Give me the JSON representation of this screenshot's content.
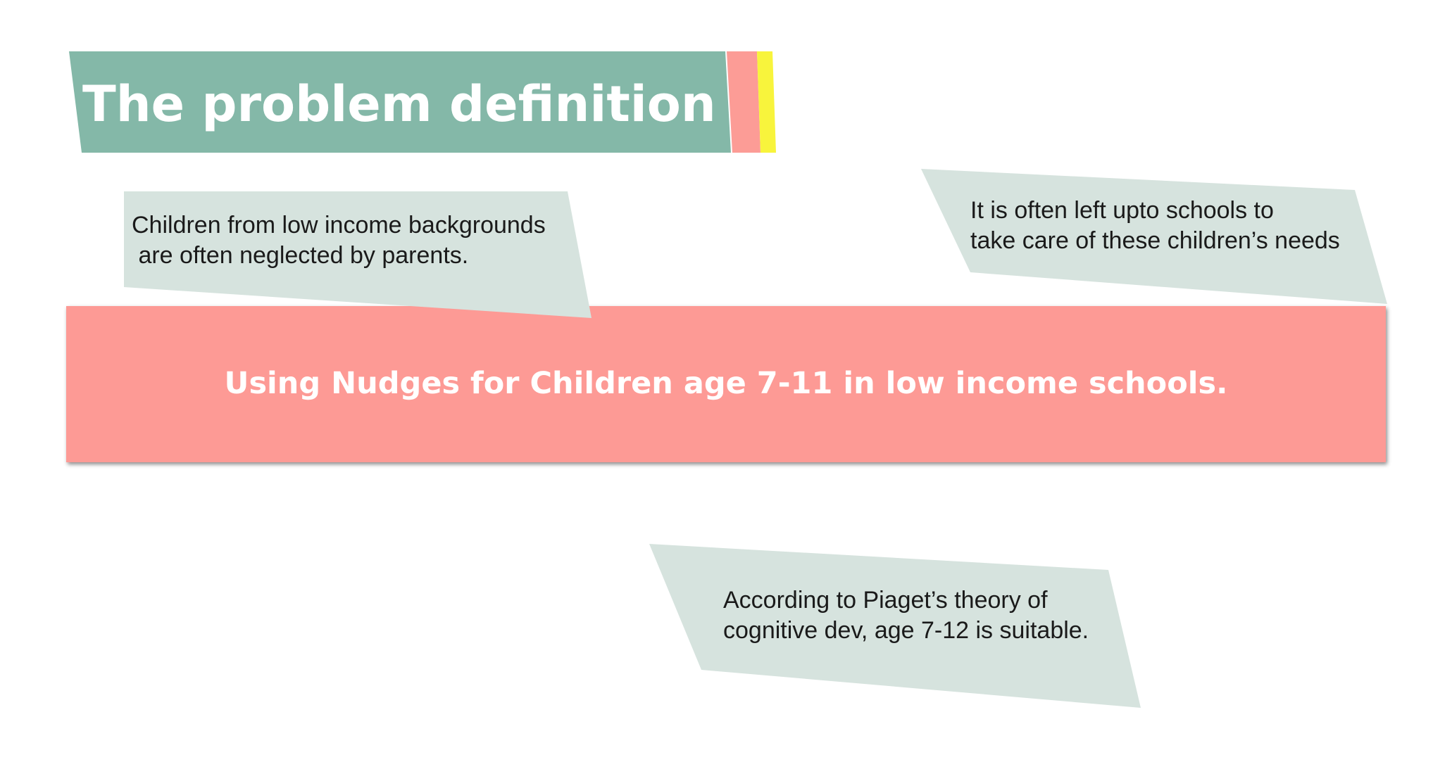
{
  "title": "The problem definition",
  "banner": "Using Nudges for Children age 7-11 in low income schools.",
  "notes": [
    {
      "lines": [
        "Children from low income backgrounds",
        " are often neglected by parents."
      ]
    },
    {
      "lines": [
        "It is often left upto schools to",
        "take care of these children’s needs"
      ]
    },
    {
      "lines": [
        "According to Piaget’s theory of",
        "cognitive dev, age 7-12 is suitable."
      ]
    }
  ],
  "colors": {
    "title_bg": "#84b8a8",
    "accent_pink": "#fc9c96",
    "accent_yellow": "#f8f43c",
    "banner_bg": "#fd9a95",
    "note_bg": "#d6e3de",
    "note_text": "#1a1a1a"
  }
}
